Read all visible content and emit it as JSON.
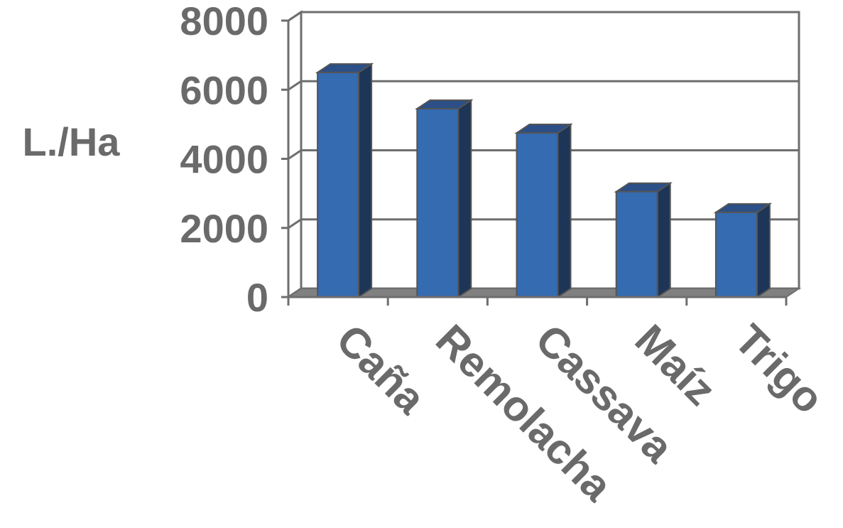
{
  "chart_data": {
    "type": "bar",
    "categories": [
      "Caña",
      "Remolacha",
      "Cassava",
      "Maíz",
      "Trigo"
    ],
    "values": [
      6500,
      5450,
      4750,
      3050,
      2450
    ],
    "title": "",
    "xlabel": "",
    "ylabel": "L./Ha",
    "ylim": [
      0,
      8000
    ],
    "yticks": [
      "0",
      "2000",
      "4000",
      "6000",
      "8000"
    ],
    "grid": true,
    "bar_style": "3d",
    "colors": {
      "bar_front": "#356bb0",
      "bar_side": "#1d3557",
      "bar_top": "#2b4f86",
      "floor": "#808080",
      "gridline": "#6e6e6e",
      "text": "#6a6a6a"
    }
  }
}
